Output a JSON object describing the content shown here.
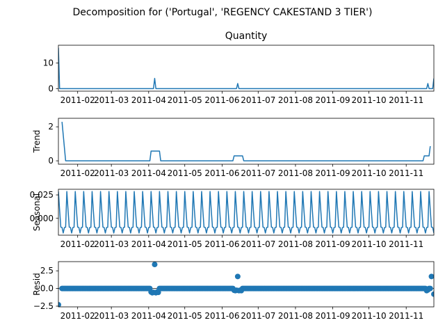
{
  "suptitle": "Decomposition for ('Portugal', 'REGENCY CAKESTAND 3 TIER')",
  "colors": {
    "line": "#1f77b4",
    "axis": "#000000",
    "background": "#ffffff"
  },
  "x_ticks": [
    "2011-02",
    "2011-03",
    "2011-04",
    "2011-05",
    "2011-06",
    "2011-07",
    "2011-08",
    "2011-09",
    "2011-10",
    "2011-11"
  ],
  "chart_data": [
    {
      "type": "line",
      "title": "Quantity",
      "ylabel": "",
      "ylim": [
        -1,
        17
      ],
      "yticks": [
        "0",
        "10"
      ],
      "x_range": [
        "2011-01-16",
        "2011-11-24"
      ],
      "points": [
        {
          "x": "2011-01-16",
          "y": 16
        },
        {
          "x": "2011-01-17",
          "y": 0
        },
        {
          "x": "2011-04-05",
          "y": 0
        },
        {
          "x": "2011-04-06",
          "y": 4
        },
        {
          "x": "2011-04-07",
          "y": 0
        },
        {
          "x": "2011-06-13",
          "y": 0
        },
        {
          "x": "2011-06-14",
          "y": 2
        },
        {
          "x": "2011-06-15",
          "y": 0
        },
        {
          "x": "2011-11-18",
          "y": 0
        },
        {
          "x": "2011-11-19",
          "y": 2
        },
        {
          "x": "2011-11-20",
          "y": 0
        },
        {
          "x": "2011-11-23",
          "y": 0
        },
        {
          "x": "2011-11-24",
          "y": 4
        }
      ]
    },
    {
      "type": "line",
      "title": "",
      "ylabel": "Trend",
      "ylim": [
        -0.2,
        2.5
      ],
      "yticks": [
        "0",
        "2"
      ],
      "x_range": [
        "2011-01-16",
        "2011-11-24"
      ],
      "points": [
        {
          "x": "2011-01-19",
          "y": 2.29
        },
        {
          "x": "2011-01-22",
          "y": 0
        },
        {
          "x": "2011-04-02",
          "y": 0
        },
        {
          "x": "2011-04-03",
          "y": 0.57
        },
        {
          "x": "2011-04-10",
          "y": 0.57
        },
        {
          "x": "2011-04-11",
          "y": 0
        },
        {
          "x": "2011-06-10",
          "y": 0
        },
        {
          "x": "2011-06-11",
          "y": 0.29
        },
        {
          "x": "2011-06-18",
          "y": 0.29
        },
        {
          "x": "2011-06-19",
          "y": 0
        },
        {
          "x": "2011-11-15",
          "y": 0
        },
        {
          "x": "2011-11-16",
          "y": 0.29
        },
        {
          "x": "2011-11-20",
          "y": 0.29
        },
        {
          "x": "2011-11-21",
          "y": 0.86
        }
      ]
    },
    {
      "type": "line",
      "title": "",
      "ylabel": "Seasonal",
      "ylim": [
        -0.018,
        0.031
      ],
      "yticks": [
        "0.025",
        "0.000"
      ],
      "x_range": [
        "2011-01-16",
        "2011-11-24"
      ],
      "series": [
        {
          "name": "",
          "period_days": 7,
          "start": "2011-01-16",
          "end": "2011-11-24",
          "pattern": [
            0.0286,
            0.009,
            -0.0094,
            -0.0097,
            -0.0157,
            -0.0098,
            -0.0095
          ]
        }
      ]
    },
    {
      "type": "scatter",
      "title": "",
      "ylabel": "Resid",
      "ylim": [
        -2.6,
        3.8
      ],
      "yticks": [
        "2.5",
        "0.0",
        "−2.5"
      ],
      "x_range": [
        "2011-01-16",
        "2011-11-24"
      ],
      "baseline": 0,
      "filled_span": [
        "2011-01-19",
        "2011-11-21"
      ],
      "default_y": 0,
      "points": [
        {
          "x": "2011-01-16",
          "y": -2.3
        },
        {
          "x": "2011-04-03",
          "y": -0.5
        },
        {
          "x": "2011-04-04",
          "y": -0.6
        },
        {
          "x": "2011-04-05",
          "y": -0.55
        },
        {
          "x": "2011-04-06",
          "y": 3.4
        },
        {
          "x": "2011-04-07",
          "y": -0.6
        },
        {
          "x": "2011-04-08",
          "y": -0.5
        },
        {
          "x": "2011-04-09",
          "y": -0.55
        },
        {
          "x": "2011-06-11",
          "y": -0.25
        },
        {
          "x": "2011-06-12",
          "y": -0.3
        },
        {
          "x": "2011-06-13",
          "y": -0.25
        },
        {
          "x": "2011-06-14",
          "y": 1.7
        },
        {
          "x": "2011-06-15",
          "y": -0.3
        },
        {
          "x": "2011-06-16",
          "y": -0.25
        },
        {
          "x": "2011-06-17",
          "y": -0.3
        },
        {
          "x": "2011-11-18",
          "y": -0.3
        },
        {
          "x": "2011-11-19",
          "y": -0.2
        },
        {
          "x": "2011-11-22",
          "y": 1.7
        },
        {
          "x": "2011-11-24",
          "y": -0.8
        }
      ]
    }
  ]
}
